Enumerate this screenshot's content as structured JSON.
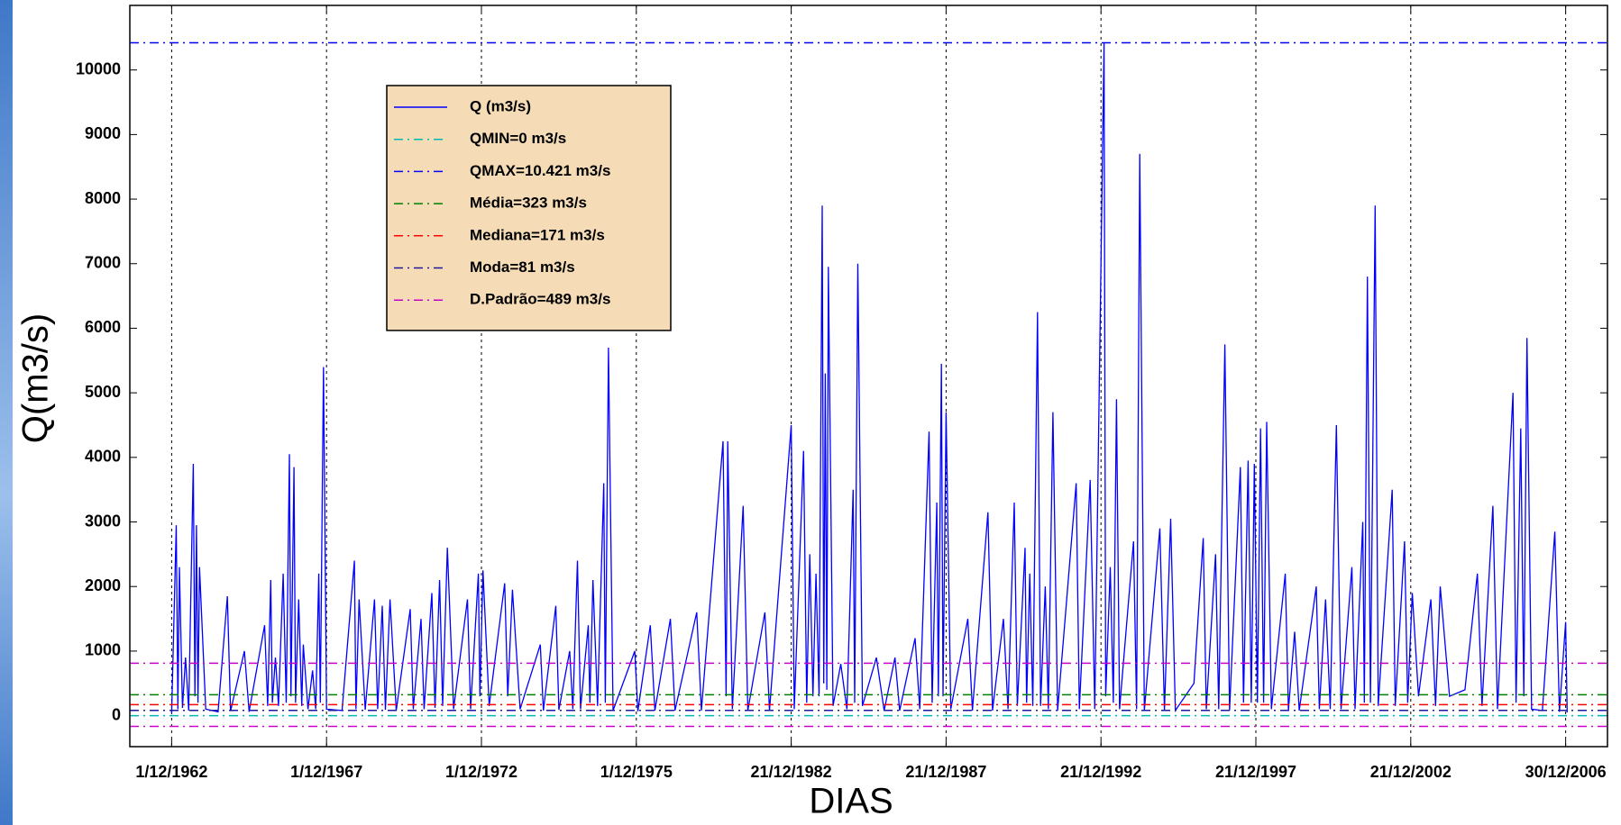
{
  "chart_data": {
    "type": "line",
    "x_label": "DIAS",
    "y_label": "Q(m3/s)",
    "xlim": [
      -27,
      927
    ],
    "ylim": [
      -480,
      11000
    ],
    "xticks": [
      {
        "value": 0,
        "label": "1/12/1962"
      },
      {
        "value": 100,
        "label": "1/12/1967"
      },
      {
        "value": 200,
        "label": "1/12/1972"
      },
      {
        "value": 300,
        "label": "1/12/1975"
      },
      {
        "value": 400,
        "label": "21/12/1982"
      },
      {
        "value": 500,
        "label": "21/12/1987"
      },
      {
        "value": 600,
        "label": "21/12/1992"
      },
      {
        "value": 700,
        "label": "21/12/1997"
      },
      {
        "value": 800,
        "label": "21/12/2002"
      },
      {
        "value": 900,
        "label": "30/12/2006"
      }
    ],
    "yticks": [
      0,
      1000,
      2000,
      3000,
      4000,
      5000,
      6000,
      7000,
      8000,
      9000,
      10000
    ],
    "xgrid": true,
    "series": [
      {
        "name": "Q (m3/s)",
        "color": "#0000ff",
        "x": [
          0,
          3,
          4,
          5,
          7,
          9,
          11,
          14,
          15,
          16,
          17,
          18,
          22,
          30,
          36,
          38,
          47,
          50,
          60,
          62,
          64,
          65,
          67,
          69,
          72,
          74,
          76,
          77,
          79,
          80,
          82,
          84,
          85,
          88,
          91,
          93,
          95,
          96,
          98,
          100,
          110,
          118,
          119,
          121,
          125,
          131,
          133,
          136,
          138,
          141,
          145,
          154,
          156,
          161,
          163,
          168,
          170,
          173,
          175,
          178,
          182,
          191,
          193,
          198,
          199,
          201,
          205,
          215,
          217,
          220,
          225,
          238,
          240,
          248,
          250,
          257,
          259,
          262,
          264,
          269,
          270,
          272,
          275,
          279,
          280,
          282,
          285,
          299,
          301,
          309,
          312,
          322,
          325,
          339,
          342,
          356,
          358,
          359,
          362,
          369,
          372,
          383,
          386,
          400,
          402,
          408,
          410,
          412,
          414,
          416,
          418,
          420,
          421,
          422,
          423,
          424,
          427,
          432,
          436,
          440,
          441,
          443,
          446,
          455,
          460,
          467,
          470,
          480,
          483,
          489,
          491,
          494,
          495,
          497,
          498,
          500,
          503,
          514,
          517,
          527,
          530,
          537,
          540,
          544,
          546,
          551,
          552,
          554,
          556,
          559,
          561,
          564,
          566,
          569,
          572,
          584,
          586,
          593,
          596,
          602,
          603,
          606,
          608,
          610,
          612,
          621,
          623,
          625,
          628,
          638,
          641,
          645,
          648,
          660,
          666,
          668,
          674,
          676,
          680,
          683,
          690,
          692,
          695,
          697,
          699,
          701,
          703,
          705,
          707,
          710,
          719,
          721,
          725,
          728,
          739,
          741,
          745,
          748,
          752,
          755,
          762,
          764,
          769,
          770,
          772,
          774,
          777,
          779,
          788,
          790,
          796,
          798,
          801,
          805,
          813,
          816,
          819,
          825,
          835,
          843,
          846,
          853,
          856,
          866,
          868,
          871,
          873,
          875,
          878,
          885,
          893,
          896,
          900,
          901
        ],
        "values": [
          40,
          2950,
          100,
          2300,
          120,
          900,
          80,
          3900,
          300,
          2950,
          200,
          2300,
          100,
          60,
          1850,
          70,
          1000,
          60,
          1400,
          150,
          2100,
          200,
          900,
          150,
          2200,
          200,
          4050,
          300,
          3850,
          200,
          1800,
          150,
          1100,
          100,
          700,
          100,
          2200,
          200,
          5400,
          100,
          80,
          2400,
          100,
          1800,
          90,
          1800,
          100,
          1700,
          90,
          1800,
          80,
          1650,
          100,
          1500,
          100,
          1900,
          120,
          2100,
          150,
          2600,
          100,
          1800,
          100,
          2200,
          300,
          2250,
          150,
          2050,
          300,
          1950,
          100,
          1100,
          80,
          1700,
          90,
          1000,
          100,
          2400,
          100,
          1400,
          200,
          2100,
          150,
          3600,
          200,
          5700,
          80,
          1000,
          70,
          1400,
          80,
          1500,
          80,
          1600,
          80,
          4250,
          300,
          4250,
          100,
          3250,
          80,
          1600,
          80,
          4500,
          100,
          4100,
          200,
          2500,
          300,
          2200,
          300,
          7900,
          500,
          5300,
          400,
          6950,
          150,
          800,
          100,
          3500,
          200,
          7000,
          150,
          900,
          80,
          900,
          80,
          1200,
          100,
          4400,
          200,
          3300,
          300,
          5450,
          300,
          4700,
          100,
          1500,
          80,
          3150,
          80,
          1500,
          100,
          3300,
          150,
          2600,
          200,
          2200,
          150,
          6250,
          150,
          2000,
          100,
          4700,
          80,
          3600,
          100,
          3650,
          100,
          10421,
          300,
          2300,
          200,
          4900,
          100,
          2700,
          100,
          8700,
          80,
          2900,
          80,
          3050,
          80,
          500,
          2750,
          100,
          2500,
          100,
          5750,
          80,
          3850,
          200,
          3950,
          200,
          3900,
          200,
          4450,
          200,
          4550,
          100,
          2200,
          80,
          1300,
          80,
          2000,
          100,
          1800,
          100,
          4500,
          100,
          2300,
          100,
          3000,
          200,
          6800,
          200,
          7900,
          150,
          3500,
          150,
          2700,
          200,
          1900,
          300,
          1800,
          150,
          2000,
          300,
          400,
          2200,
          150,
          3250,
          100,
          5000,
          200,
          4450,
          300,
          5850,
          100,
          80,
          2850,
          60,
          1450,
          50
        ]
      }
    ],
    "reference_lines": [
      {
        "name": "QMIN=0 m3/s",
        "color": "#00b8b8",
        "values": [
          0
        ]
      },
      {
        "name": "QMAX=10.421 m3/s",
        "color": "#0000ff",
        "values": [
          10421
        ]
      },
      {
        "name": "Média=323 m3/s",
        "color": "#008000",
        "values": [
          323
        ]
      },
      {
        "name": "Mediana=171 m3/s",
        "color": "#ff0000",
        "values": [
          171
        ]
      },
      {
        "name": "Moda=81 m3/s",
        "color": "#1a1aa0",
        "values": [
          81
        ]
      },
      {
        "name": "D.Padrão=489 m3/s",
        "color": "#cc00cc",
        "values": [
          812,
          -166
        ]
      }
    ]
  }
}
